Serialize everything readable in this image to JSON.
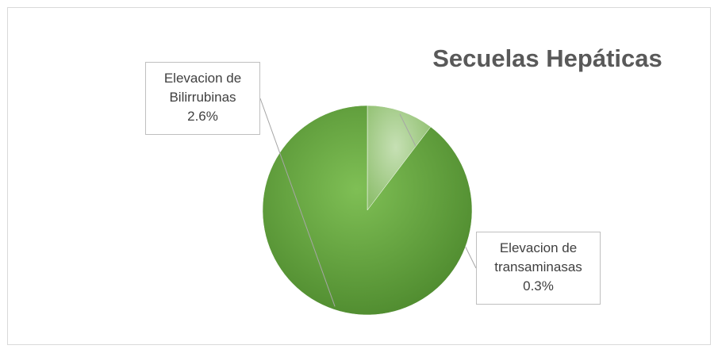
{
  "chart_data": {
    "type": "pie",
    "title": "Secuelas Hepáticas",
    "categories": [
      "Elevacion de transaminasas",
      "Elevacion de Bilirrubinas"
    ],
    "values": [
      0.3,
      2.6
    ],
    "value_labels": [
      "0.3%",
      "2.6%"
    ],
    "colors": [
      "#a9d18e",
      "#6aa84f"
    ]
  }
}
